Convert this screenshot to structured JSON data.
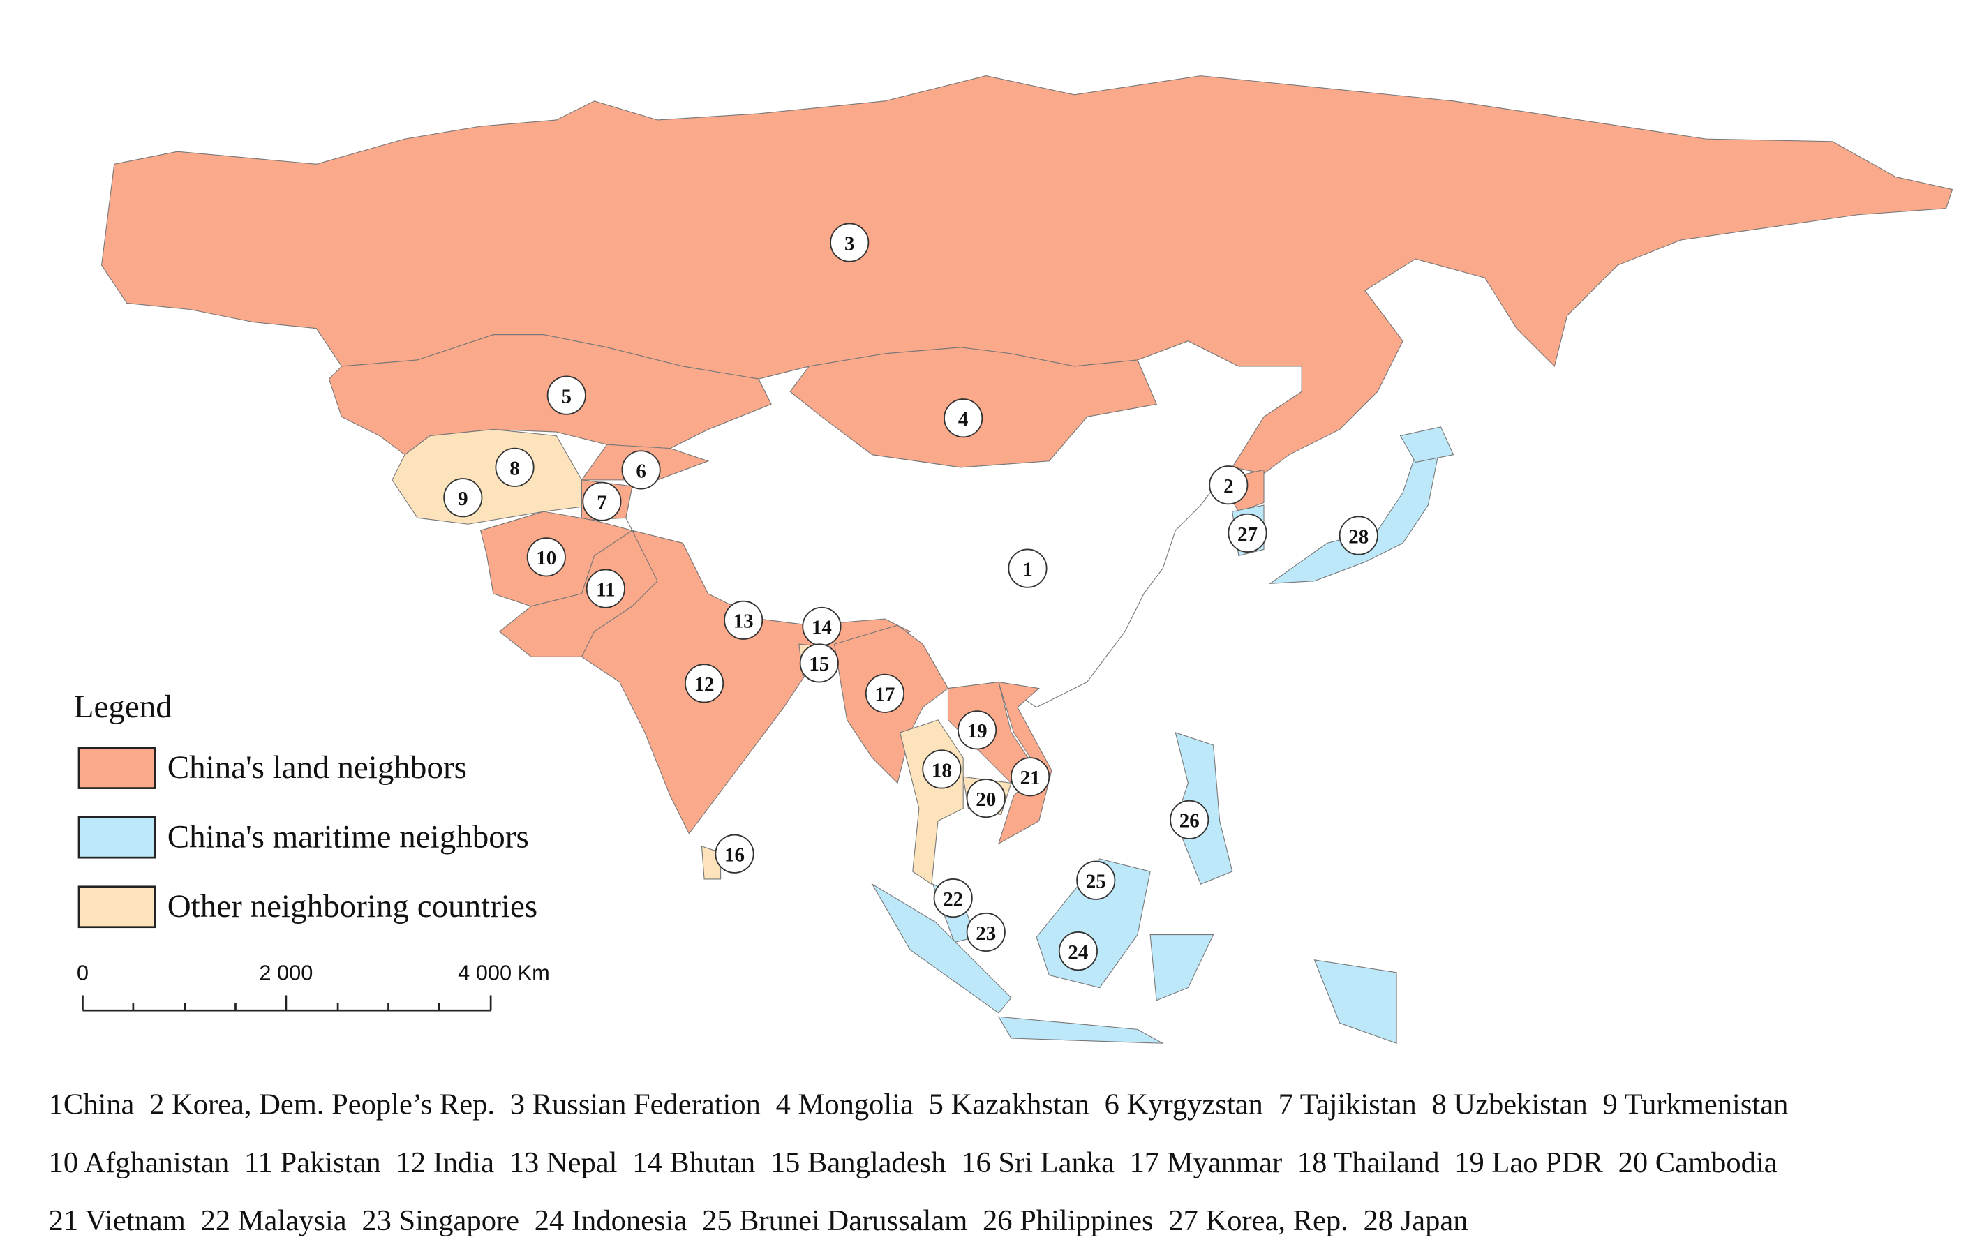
{
  "legend": {
    "title": "Legend",
    "items": [
      {
        "label": "China's land neighbors",
        "color": "#fba98b"
      },
      {
        "label": "China's maritime neighbors",
        "color": "#bde8f9"
      },
      {
        "label": "Other neighboring countries",
        "color": "#fce3bb"
      }
    ]
  },
  "scale_bar": {
    "labels": [
      "0",
      "2 000",
      "4 000 Km"
    ]
  },
  "markers": [
    "1",
    "2",
    "3",
    "4",
    "5",
    "6",
    "7",
    "8",
    "9",
    "10",
    "11",
    "12",
    "13",
    "14",
    "15",
    "16",
    "17",
    "18",
    "19",
    "20",
    "21",
    "22",
    "23",
    "24",
    "25",
    "26",
    "27",
    "28"
  ],
  "footer": [
    [
      "1China",
      "2 Korea, Dem. People’s Rep.",
      "3 Russian Federation",
      "4 Mongolia",
      "5 Kazakhstan",
      "6 Kyrgyzstan",
      "7 Tajikistan",
      "8 Uzbekistan",
      "9 Turkmenistan"
    ],
    [
      "10 Afghanistan",
      "11 Pakistan",
      "12 India",
      "13 Nepal",
      "14 Bhutan",
      "15 Bangladesh",
      "16 Sri Lanka",
      "17 Myanmar",
      "18 Thailand",
      "19 Lao PDR",
      "20 Cambodia"
    ],
    [
      "21 Vietnam",
      "22 Malaysia",
      "23 Singapore",
      "24 Indonesia",
      "25 Brunei Darussalam",
      "26 Philippines",
      "27 Korea, Rep.",
      "28 Japan"
    ]
  ]
}
